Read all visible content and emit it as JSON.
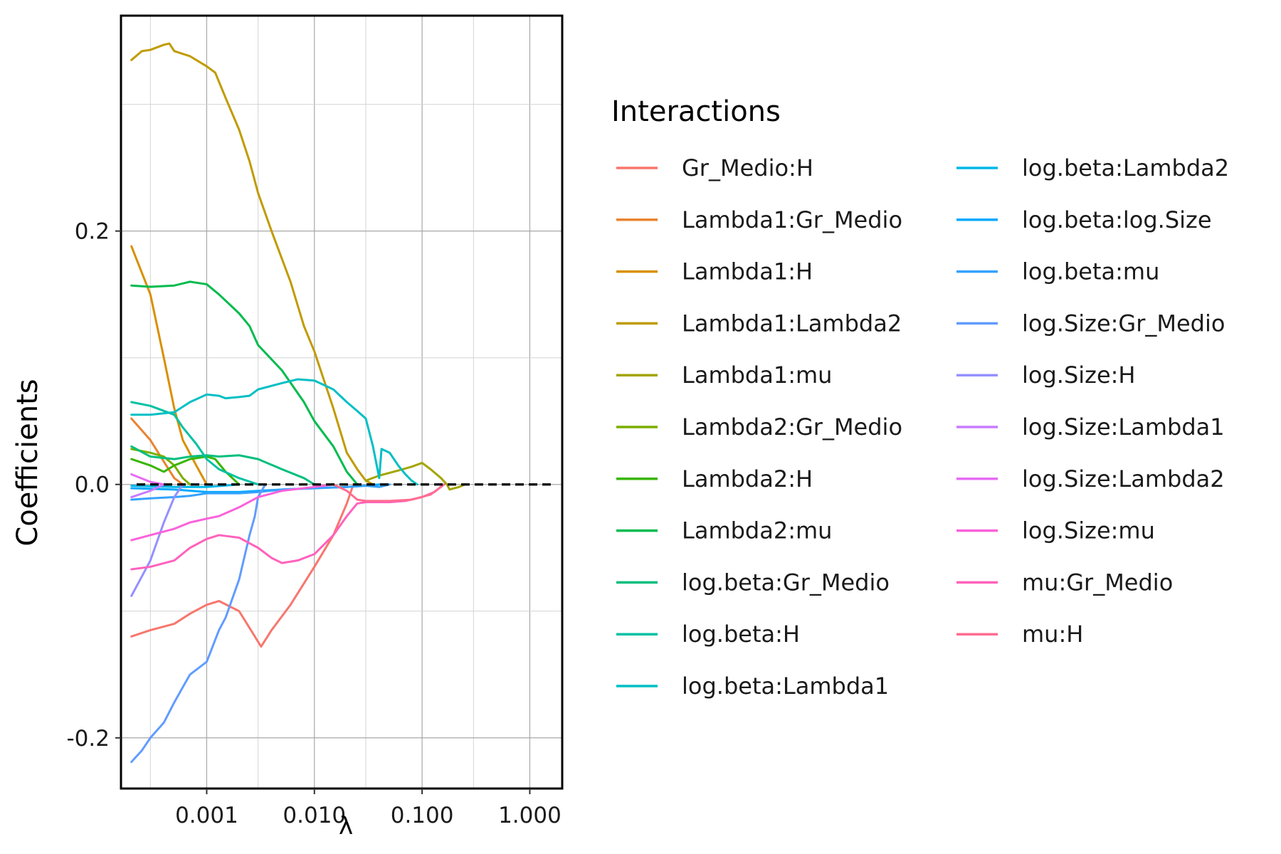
{
  "chart_data": {
    "type": "line",
    "xlabel": "λ",
    "ylabel": "Coefficients",
    "x_scale": "log10",
    "xlim": [
      0.00016,
      2.0
    ],
    "ylim": [
      -0.24,
      0.37
    ],
    "x_ticks": [
      0.001,
      0.01,
      0.1,
      1
    ],
    "x_tick_labels": [
      "0.001",
      "0.010",
      "0.100",
      "1.000"
    ],
    "y_ticks": [
      -0.2,
      0.0,
      0.2
    ],
    "y_tick_labels": [
      "-0.2",
      "0.0",
      "0.2"
    ],
    "grid": true,
    "zero_line": {
      "y": 0,
      "style": "dashed",
      "color": "#000000"
    },
    "legend": {
      "title": "Interactions",
      "position": "right",
      "columns": 2
    },
    "series": [
      {
        "name": "Gr_Medio:H",
        "color": "#F8766D",
        "points": [
          [
            0.0002,
            -0.12
          ],
          [
            0.0003,
            -0.115
          ],
          [
            0.0005,
            -0.11
          ],
          [
            0.0007,
            -0.102
          ],
          [
            0.001,
            -0.095
          ],
          [
            0.0013,
            -0.092
          ],
          [
            0.002,
            -0.1
          ],
          [
            0.0028,
            -0.12
          ],
          [
            0.0032,
            -0.128
          ],
          [
            0.004,
            -0.115
          ],
          [
            0.006,
            -0.095
          ],
          [
            0.01,
            -0.065
          ],
          [
            0.015,
            -0.04
          ],
          [
            0.02,
            -0.015
          ],
          [
            0.023,
            0.0
          ]
        ]
      },
      {
        "name": "Lambda1:Gr_Medio",
        "color": "#EA8331",
        "points": [
          [
            0.0002,
            0.052
          ],
          [
            0.0003,
            0.035
          ],
          [
            0.0004,
            0.018
          ],
          [
            0.0005,
            0.005
          ],
          [
            0.0006,
            0.0
          ]
        ]
      },
      {
        "name": "Lambda1:H",
        "color": "#D89000",
        "points": [
          [
            0.0002,
            0.188
          ],
          [
            0.0003,
            0.15
          ],
          [
            0.0004,
            0.1
          ],
          [
            0.0005,
            0.06
          ],
          [
            0.0006,
            0.035
          ],
          [
            0.0008,
            0.015
          ],
          [
            0.001,
            0.0
          ]
        ]
      },
      {
        "name": "Lambda1:Lambda2",
        "color": "#C09B00",
        "points": [
          [
            0.0002,
            0.335
          ],
          [
            0.00025,
            0.342
          ],
          [
            0.0003,
            0.343
          ],
          [
            0.0004,
            0.347
          ],
          [
            0.00045,
            0.348
          ],
          [
            0.0005,
            0.342
          ],
          [
            0.0007,
            0.338
          ],
          [
            0.001,
            0.33
          ],
          [
            0.0012,
            0.325
          ],
          [
            0.0015,
            0.305
          ],
          [
            0.002,
            0.28
          ],
          [
            0.0025,
            0.255
          ],
          [
            0.003,
            0.23
          ],
          [
            0.004,
            0.2
          ],
          [
            0.006,
            0.16
          ],
          [
            0.008,
            0.125
          ],
          [
            0.01,
            0.105
          ],
          [
            0.015,
            0.06
          ],
          [
            0.02,
            0.025
          ],
          [
            0.025,
            0.012
          ],
          [
            0.03,
            0.003
          ],
          [
            0.035,
            0.0
          ]
        ]
      },
      {
        "name": "Lambda1:mu",
        "color": "#A3A500",
        "points": [
          [
            0.03,
            0.003
          ],
          [
            0.04,
            0.007
          ],
          [
            0.06,
            0.011
          ],
          [
            0.08,
            0.014
          ],
          [
            0.1,
            0.017
          ],
          [
            0.12,
            0.012
          ],
          [
            0.15,
            0.005
          ],
          [
            0.17,
            0.0
          ],
          [
            0.18,
            -0.004
          ],
          [
            0.22,
            -0.002
          ],
          [
            0.25,
            0.0
          ]
        ]
      },
      {
        "name": "Lambda2:Gr_Medio",
        "color": "#7CAE00",
        "points": [
          [
            0.0002,
            0.028
          ],
          [
            0.0003,
            0.025
          ],
          [
            0.0004,
            0.022
          ],
          [
            0.0005,
            0.015
          ],
          [
            0.0006,
            0.005
          ],
          [
            0.0007,
            0.0
          ]
        ]
      },
      {
        "name": "Lambda2:H",
        "color": "#39B600",
        "points": [
          [
            0.0002,
            0.02
          ],
          [
            0.0003,
            0.015
          ],
          [
            0.0004,
            0.01
          ],
          [
            0.0005,
            0.015
          ],
          [
            0.0007,
            0.02
          ],
          [
            0.001,
            0.022
          ],
          [
            0.0012,
            0.02
          ],
          [
            0.0015,
            0.01
          ],
          [
            0.002,
            0.0
          ]
        ]
      },
      {
        "name": "Lambda2:mu",
        "color": "#00BB4E",
        "points": [
          [
            0.0002,
            0.157
          ],
          [
            0.0003,
            0.156
          ],
          [
            0.0005,
            0.157
          ],
          [
            0.0007,
            0.16
          ],
          [
            0.001,
            0.158
          ],
          [
            0.0013,
            0.15
          ],
          [
            0.002,
            0.135
          ],
          [
            0.0025,
            0.125
          ],
          [
            0.003,
            0.11
          ],
          [
            0.005,
            0.09
          ],
          [
            0.008,
            0.065
          ],
          [
            0.01,
            0.05
          ],
          [
            0.015,
            0.03
          ],
          [
            0.02,
            0.01
          ],
          [
            0.025,
            0.0
          ]
        ]
      },
      {
        "name": "log.beta:Gr_Medio",
        "color": "#00BF7D",
        "points": [
          [
            0.0002,
            0.03
          ],
          [
            0.0003,
            0.022
          ],
          [
            0.0005,
            0.02
          ],
          [
            0.0007,
            0.022
          ],
          [
            0.001,
            0.023
          ],
          [
            0.0013,
            0.022
          ],
          [
            0.002,
            0.023
          ],
          [
            0.003,
            0.02
          ],
          [
            0.005,
            0.012
          ],
          [
            0.008,
            0.005
          ],
          [
            0.01,
            0.0
          ]
        ]
      },
      {
        "name": "log.beta:H",
        "color": "#00C1A3",
        "points": [
          [
            0.0002,
            0.065
          ],
          [
            0.0003,
            0.062
          ],
          [
            0.0005,
            0.055
          ],
          [
            0.0006,
            0.045
          ],
          [
            0.0008,
            0.032
          ],
          [
            0.001,
            0.02
          ],
          [
            0.0013,
            0.012
          ],
          [
            0.002,
            0.005
          ],
          [
            0.003,
            0.0
          ]
        ]
      },
      {
        "name": "log.beta:Lambda1",
        "color": "#00BFC4",
        "points": [
          [
            0.0002,
            0.055
          ],
          [
            0.0003,
            0.055
          ],
          [
            0.0005,
            0.057
          ],
          [
            0.0007,
            0.065
          ],
          [
            0.001,
            0.071
          ],
          [
            0.0013,
            0.07
          ],
          [
            0.0015,
            0.068
          ],
          [
            0.002,
            0.069
          ],
          [
            0.0025,
            0.07
          ],
          [
            0.003,
            0.075
          ],
          [
            0.005,
            0.08
          ],
          [
            0.007,
            0.083
          ],
          [
            0.01,
            0.082
          ],
          [
            0.015,
            0.075
          ],
          [
            0.02,
            0.065
          ],
          [
            0.025,
            0.058
          ],
          [
            0.03,
            0.052
          ],
          [
            0.035,
            0.03
          ],
          [
            0.04,
            0.005
          ],
          [
            0.042,
            0.028
          ],
          [
            0.05,
            0.025
          ],
          [
            0.06,
            0.015
          ],
          [
            0.07,
            0.008
          ],
          [
            0.08,
            0.003
          ],
          [
            0.09,
            0.0
          ]
        ]
      },
      {
        "name": "log.beta:Lambda2",
        "color": "#00B8E7",
        "points": [
          [
            0.0002,
            -0.001
          ],
          [
            0.0005,
            -0.002
          ],
          [
            0.001,
            -0.002
          ],
          [
            0.002,
            0.0
          ]
        ]
      },
      {
        "name": "log.beta:log.Size",
        "color": "#00A9FF",
        "points": [
          [
            0.0002,
            -0.003
          ],
          [
            0.0005,
            -0.004
          ],
          [
            0.001,
            -0.006
          ],
          [
            0.002,
            -0.006
          ],
          [
            0.005,
            -0.004
          ],
          [
            0.01,
            -0.003
          ],
          [
            0.02,
            -0.002
          ],
          [
            0.03,
            -0.001
          ],
          [
            0.04,
            0.0
          ]
        ]
      },
      {
        "name": "log.beta:mu",
        "color": "#35A2FF",
        "points": [
          [
            0.0002,
            -0.012
          ],
          [
            0.0003,
            -0.011
          ],
          [
            0.0005,
            -0.01
          ],
          [
            0.0007,
            -0.009
          ],
          [
            0.001,
            -0.007
          ],
          [
            0.002,
            -0.007
          ],
          [
            0.003,
            -0.006
          ],
          [
            0.005,
            -0.004
          ],
          [
            0.01,
            -0.003
          ],
          [
            0.02,
            -0.002
          ],
          [
            0.03,
            -0.001
          ],
          [
            0.04,
            -0.002
          ],
          [
            0.05,
            0.0
          ]
        ]
      },
      {
        "name": "log.Size:Gr_Medio",
        "color": "#619CFF",
        "points": [
          [
            0.0002,
            -0.219
          ],
          [
            0.00025,
            -0.21
          ],
          [
            0.0003,
            -0.2
          ],
          [
            0.0004,
            -0.188
          ],
          [
            0.0005,
            -0.172
          ],
          [
            0.0006,
            -0.16
          ],
          [
            0.0007,
            -0.15
          ],
          [
            0.001,
            -0.14
          ],
          [
            0.0013,
            -0.115
          ],
          [
            0.0015,
            -0.105
          ],
          [
            0.002,
            -0.075
          ],
          [
            0.0025,
            -0.04
          ],
          [
            0.0028,
            -0.025
          ],
          [
            0.003,
            -0.01
          ],
          [
            0.0035,
            0.0
          ]
        ]
      },
      {
        "name": "log.Size:H",
        "color": "#9590FF",
        "points": [
          [
            0.0002,
            -0.088
          ],
          [
            0.0003,
            -0.06
          ],
          [
            0.0004,
            -0.03
          ],
          [
            0.0005,
            -0.01
          ],
          [
            0.0006,
            0.0
          ]
        ]
      },
      {
        "name": "log.Size:Lambda1",
        "color": "#C77CFF",
        "points": [
          [
            0.0002,
            -0.01
          ],
          [
            0.0003,
            -0.005
          ],
          [
            0.0004,
            0.0
          ]
        ]
      },
      {
        "name": "log.Size:Lambda2",
        "color": "#E76BF3",
        "points": [
          [
            0.0002,
            0.008
          ],
          [
            0.0003,
            0.002
          ],
          [
            0.0004,
            0.0
          ]
        ]
      },
      {
        "name": "log.Size:mu",
        "color": "#FA62DB",
        "points": [
          [
            0.0002,
            -0.044
          ],
          [
            0.0003,
            -0.04
          ],
          [
            0.0005,
            -0.035
          ],
          [
            0.0007,
            -0.03
          ],
          [
            0.001,
            -0.027
          ],
          [
            0.0013,
            -0.025
          ],
          [
            0.002,
            -0.018
          ],
          [
            0.003,
            -0.01
          ],
          [
            0.005,
            -0.005
          ],
          [
            0.01,
            -0.002
          ],
          [
            0.015,
            0.0
          ]
        ]
      },
      {
        "name": "mu:Gr_Medio",
        "color": "#FF62BC",
        "points": [
          [
            0.0002,
            -0.067
          ],
          [
            0.0003,
            -0.065
          ],
          [
            0.0005,
            -0.06
          ],
          [
            0.0007,
            -0.05
          ],
          [
            0.001,
            -0.043
          ],
          [
            0.0013,
            -0.04
          ],
          [
            0.002,
            -0.042
          ],
          [
            0.003,
            -0.05
          ],
          [
            0.004,
            -0.058
          ],
          [
            0.005,
            -0.062
          ],
          [
            0.007,
            -0.06
          ],
          [
            0.01,
            -0.055
          ],
          [
            0.015,
            -0.04
          ],
          [
            0.02,
            -0.025
          ],
          [
            0.025,
            -0.015
          ],
          [
            0.03,
            -0.014
          ],
          [
            0.05,
            -0.014
          ],
          [
            0.07,
            -0.013
          ],
          [
            0.1,
            -0.01
          ],
          [
            0.13,
            -0.006
          ],
          [
            0.16,
            0.0
          ]
        ]
      },
      {
        "name": "mu:H",
        "color": "#FF6C91",
        "points": [
          [
            0.015,
            0.0
          ],
          [
            0.02,
            -0.005
          ],
          [
            0.025,
            -0.012
          ],
          [
            0.03,
            -0.013
          ],
          [
            0.05,
            -0.013
          ],
          [
            0.08,
            -0.012
          ],
          [
            0.12,
            -0.008
          ],
          [
            0.16,
            0.0
          ]
        ]
      }
    ]
  }
}
